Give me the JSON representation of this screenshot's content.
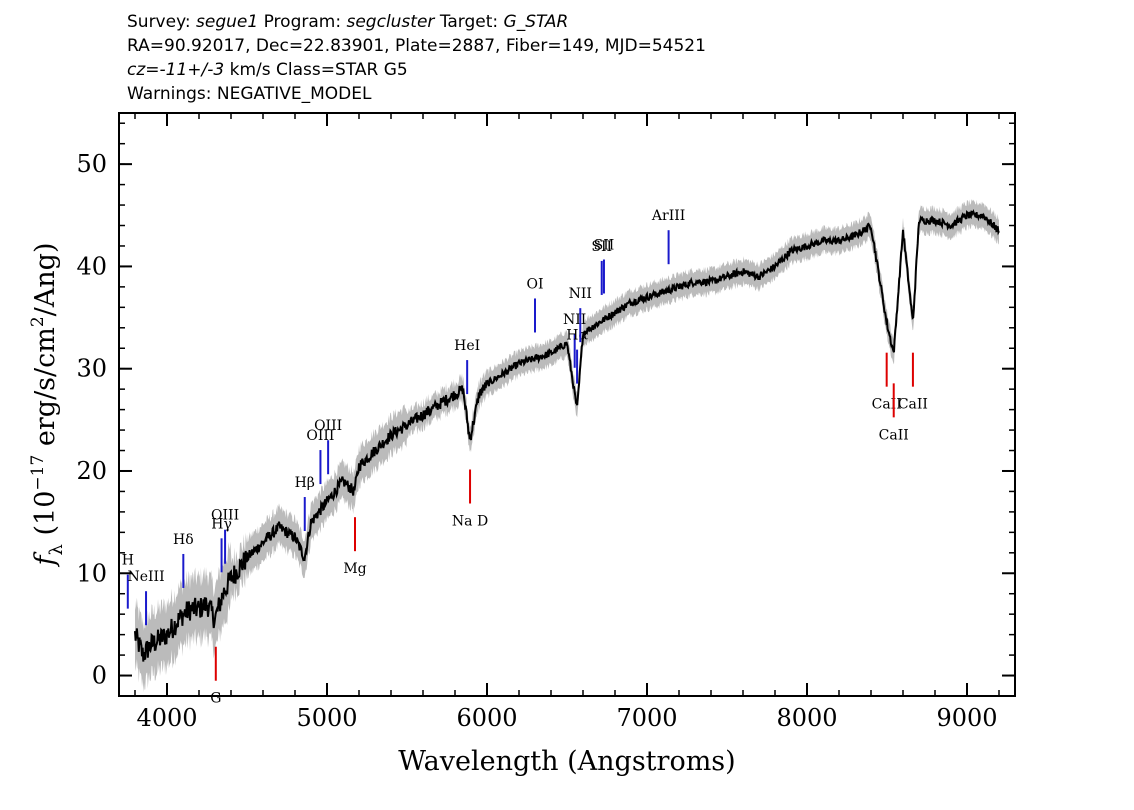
{
  "header": {
    "survey_label": "Survey:",
    "survey": "segue1",
    "program_label": "Program:",
    "program": "segcluster",
    "target_label": "Target:",
    "target": "G_STAR",
    "line2": "RA=90.92017, Dec=22.83901, Plate=2887, Fiber=149, MJD=54521",
    "cz_label": "cz=",
    "cz_value": "-11+/-3",
    "cz_unit": "km/s Class=STAR G5",
    "warnings": "Warnings: NEGATIVE_MODEL"
  },
  "chart_data": {
    "type": "line",
    "xlabel": "Wavelength (Angstroms)",
    "ylabel": "f_λ (10^-17 erg/s/cm^2/Ang)",
    "xlim": [
      3700,
      9300
    ],
    "ylim": [
      -2,
      55
    ],
    "xticks": [
      4000,
      5000,
      6000,
      7000,
      8000,
      9000
    ],
    "yticks": [
      0,
      10,
      20,
      30,
      40,
      50
    ],
    "grid": false,
    "colors": {
      "spectrum": "#000000",
      "error": "#bbbbbb",
      "emission": "#1a1acc",
      "absorption": "#dd0000"
    },
    "series": [
      {
        "x": [
          3800,
          3850,
          3900,
          3950,
          4000,
          4050,
          4100,
          4150,
          4200,
          4250,
          4300,
          4350,
          4400,
          4450,
          4500,
          4600,
          4700,
          4800,
          4860,
          4900,
          4950,
          5000,
          5100,
          5170,
          5200,
          5300,
          5400,
          5500,
          5600,
          5700,
          5800,
          5850,
          5893,
          5950,
          6000,
          6100,
          6200,
          6300,
          6400,
          6500,
          6563,
          6600,
          6700,
          6800,
          6900,
          7000,
          7100,
          7200,
          7300,
          7400,
          7500,
          7600,
          7700,
          7800,
          7900,
          8000,
          8100,
          8200,
          8300,
          8400,
          8498,
          8542,
          8600,
          8662,
          8700,
          8800,
          8900,
          9000,
          9100,
          9200
        ],
        "y": [
          4,
          2,
          3,
          3.5,
          4,
          5,
          6,
          6.5,
          6.5,
          7,
          5.5,
          8,
          9.5,
          10.5,
          11.5,
          13,
          14.5,
          13.5,
          11.5,
          15,
          16,
          17,
          19,
          18,
          20.5,
          22,
          23.5,
          24.5,
          25.5,
          26.5,
          27.5,
          28,
          23,
          27.5,
          28.5,
          29.5,
          30.5,
          31,
          31.5,
          32.5,
          26,
          33.5,
          34.5,
          35.5,
          36.5,
          37,
          37.5,
          38,
          38.5,
          38.5,
          39,
          39.5,
          39,
          40,
          41.5,
          42,
          42.5,
          42.5,
          43,
          44,
          34.5,
          31.5,
          43.5,
          34.5,
          44.5,
          44.5,
          44,
          45,
          45,
          43.5
        ]
      }
    ],
    "lines": [
      {
        "label": "H",
        "x": 3755,
        "kind": "emission"
      },
      {
        "label": "NeIII",
        "x": 3869,
        "kind": "emission"
      },
      {
        "label": "Hδ",
        "x": 4102,
        "kind": "emission"
      },
      {
        "label": "Hγ",
        "x": 4341,
        "kind": "emission"
      },
      {
        "label": "OIII",
        "x": 4363,
        "kind": "emission"
      },
      {
        "label": "Hβ",
        "x": 4861,
        "kind": "emission"
      },
      {
        "label": "OIII",
        "x": 4959,
        "kind": "emission"
      },
      {
        "label": "OIII",
        "x": 5007,
        "kind": "emission"
      },
      {
        "label": "HeI",
        "x": 5876,
        "kind": "emission"
      },
      {
        "label": "OI",
        "x": 6300,
        "kind": "emission"
      },
      {
        "label": "NII",
        "x": 6548,
        "kind": "emission"
      },
      {
        "label": "Hα",
        "x": 6563,
        "kind": "emission"
      },
      {
        "label": "NII",
        "x": 6583,
        "kind": "emission"
      },
      {
        "label": "SII",
        "x": 6717,
        "kind": "emission"
      },
      {
        "label": "SII",
        "x": 6731,
        "kind": "emission"
      },
      {
        "label": "ArIII",
        "x": 7135,
        "kind": "emission"
      },
      {
        "label": "G",
        "x": 4305,
        "kind": "absorption"
      },
      {
        "label": "Mg",
        "x": 5175,
        "kind": "absorption"
      },
      {
        "label": "Na D",
        "x": 5894,
        "kind": "absorption"
      },
      {
        "label": "CaII",
        "x": 8498,
        "kind": "absorption"
      },
      {
        "label": "CaII",
        "x": 8542,
        "kind": "absorption"
      },
      {
        "label": "CaII",
        "x": 8662,
        "kind": "absorption"
      }
    ]
  }
}
